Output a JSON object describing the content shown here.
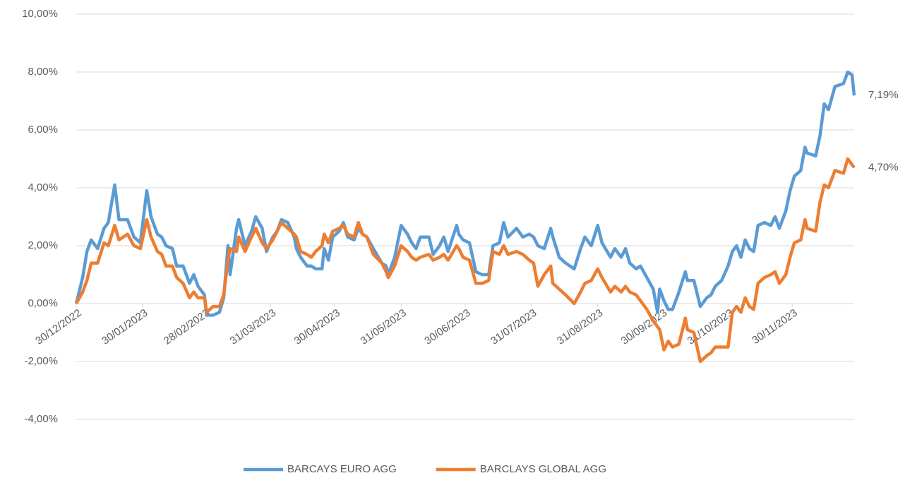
{
  "chart_data": {
    "type": "line",
    "x": [
      "30/12/2022",
      "02/01/2023",
      "04/01/2023",
      "06/01/2023",
      "09/01/2023",
      "12/01/2023",
      "14/01/2023",
      "17/01/2023",
      "19/01/2023",
      "23/01/2023",
      "26/01/2023",
      "29/01/2023",
      "01/02/2023",
      "03/02/2023",
      "06/02/2023",
      "08/02/2023",
      "10/02/2023",
      "13/02/2023",
      "15/02/2023",
      "18/02/2023",
      "21/02/2023",
      "23/02/2023",
      "25/02/2023",
      "28/02/2023",
      "01/03/2023",
      "04/03/2023",
      "07/03/2023",
      "09/03/2023",
      "11/03/2023",
      "12/03/2023",
      "15/03/2023",
      "16/03/2023",
      "19/03/2023",
      "22/03/2023",
      "24/03/2023",
      "27/03/2023",
      "29/03/2023",
      "01/04/2023",
      "03/04/2023",
      "05/04/2023",
      "08/04/2023",
      "11/04/2023",
      "12/04/2023",
      "14/04/2023",
      "17/04/2023",
      "19/04/2023",
      "21/04/2023",
      "24/04/2023",
      "25/04/2023",
      "27/04/2023",
      "29/04/2023",
      "02/05/2023",
      "04/05/2023",
      "06/05/2023",
      "09/05/2023",
      "11/05/2023",
      "13/05/2023",
      "15/05/2023",
      "18/05/2023",
      "22/05/2023",
      "24/05/2023",
      "25/05/2023",
      "28/05/2023",
      "31/05/2023",
      "03/06/2023",
      "05/06/2023",
      "07/06/2023",
      "09/06/2023",
      "13/06/2023",
      "15/06/2023",
      "18/06/2023",
      "20/06/2023",
      "22/06/2023",
      "26/06/2023",
      "27/06/2023",
      "29/06/2023",
      "02/07/2023",
      "05/07/2023",
      "08/07/2023",
      "11/07/2023",
      "13/07/2023",
      "16/07/2023",
      "18/07/2023",
      "20/07/2023",
      "24/07/2023",
      "27/07/2023",
      "30/07/2023",
      "01/08/2023",
      "03/08/2023",
      "06/08/2023",
      "09/08/2023",
      "10/08/2023",
      "13/08/2023",
      "16/08/2023",
      "20/08/2023",
      "23/08/2023",
      "25/08/2023",
      "28/08/2023",
      "31/08/2023",
      "02/09/2023",
      "06/09/2023",
      "08/09/2023",
      "11/09/2023",
      "13/09/2023",
      "15/09/2023",
      "18/09/2023",
      "20/09/2023",
      "23/09/2023",
      "26/09/2023",
      "28/09/2023",
      "29/09/2023",
      "01/10/2023",
      "03/10/2023",
      "05/10/2023",
      "08/10/2023",
      "11/10/2023",
      "12/10/2023",
      "15/10/2023",
      "18/10/2023",
      "21/10/2023",
      "23/10/2023",
      "25/10/2023",
      "28/10/2023",
      "31/10/2023",
      "02/11/2023",
      "04/11/2023",
      "06/11/2023",
      "08/11/2023",
      "10/11/2023",
      "12/11/2023",
      "14/11/2023",
      "17/11/2023",
      "20/11/2023",
      "22/11/2023",
      "24/11/2023",
      "27/11/2023",
      "29/11/2023",
      "01/12/2023",
      "04/12/2023",
      "06/12/2023",
      "07/12/2023",
      "11/12/2023",
      "13/12/2023",
      "15/12/2023",
      "17/12/2023",
      "20/12/2023",
      "24/12/2023",
      "26/12/2023",
      "28/12/2023",
      "29/12/2023"
    ],
    "series": [
      {
        "name": "BARCAYS EURO AGG",
        "color": "#5b9bd5",
        "values": [
          0,
          0.9,
          1.8,
          2.2,
          1.9,
          2.6,
          2.8,
          4.1,
          2.9,
          2.9,
          2.3,
          2.1,
          3.9,
          3.0,
          2.4,
          2.3,
          2.0,
          1.9,
          1.3,
          1.3,
          0.7,
          1.0,
          0.6,
          0.3,
          -0.4,
          -0.4,
          -0.3,
          0.2,
          2.0,
          1.0,
          2.6,
          2.9,
          2.0,
          2.5,
          3.0,
          2.6,
          1.8,
          2.3,
          2.5,
          2.9,
          2.8,
          2.3,
          1.9,
          1.6,
          1.3,
          1.3,
          1.2,
          1.2,
          1.9,
          1.5,
          2.3,
          2.5,
          2.8,
          2.3,
          2.2,
          2.6,
          2.4,
          2.3,
          1.9,
          1.4,
          1.3,
          1.0,
          1.6,
          2.7,
          2.4,
          2.1,
          1.9,
          2.3,
          2.3,
          1.7,
          2.0,
          2.3,
          1.8,
          2.7,
          2.4,
          2.2,
          2.1,
          1.1,
          1.0,
          1.0,
          2.0,
          2.1,
          2.8,
          2.3,
          2.6,
          2.3,
          2.4,
          2.3,
          2.0,
          1.9,
          2.6,
          2.3,
          1.6,
          1.4,
          1.2,
          1.9,
          2.3,
          2.0,
          2.7,
          2.1,
          1.6,
          1.9,
          1.6,
          1.9,
          1.4,
          1.2,
          1.3,
          0.9,
          0.5,
          -0.3,
          0.5,
          0.1,
          -0.2,
          -0.2,
          0.4,
          1.1,
          0.8,
          0.8,
          -0.1,
          0.2,
          0.3,
          0.6,
          0.8,
          1.3,
          1.8,
          2.0,
          1.6,
          2.2,
          1.9,
          1.8,
          2.7,
          2.8,
          2.7,
          3.0,
          2.6,
          3.2,
          3.9,
          4.4,
          4.6,
          5.4,
          5.2,
          5.1,
          5.8,
          6.9,
          6.7,
          7.5,
          7.6,
          8.0,
          7.9,
          7.19
        ],
        "value_labels": [
          null,
          null,
          null,
          null,
          null,
          null,
          null,
          null,
          null,
          null,
          null,
          null,
          null,
          null,
          null,
          null,
          null,
          null,
          null,
          null,
          null,
          null,
          null,
          null,
          null,
          null,
          null,
          null,
          null,
          null,
          null,
          null,
          null,
          null,
          null,
          null,
          null,
          null,
          null,
          null,
          null,
          null,
          null,
          null,
          null,
          null,
          null,
          null,
          null,
          null,
          null,
          null,
          null,
          null,
          null,
          null,
          null,
          null,
          null,
          null,
          null,
          null,
          null,
          null,
          null,
          null,
          null,
          null,
          null,
          null,
          null,
          null,
          null,
          null,
          null,
          null,
          null,
          null,
          null,
          null,
          null,
          null,
          null,
          null,
          null,
          null,
          null,
          null,
          null,
          null,
          null,
          null,
          null,
          null,
          null,
          null,
          null,
          null,
          null,
          null,
          null,
          null,
          null,
          null,
          null,
          null,
          null,
          null,
          null,
          null,
          null,
          null,
          null,
          null,
          null,
          null,
          null,
          null,
          null,
          null,
          null,
          null,
          null,
          null,
          null,
          null,
          null,
          null,
          null,
          null,
          null,
          null,
          null,
          null,
          null,
          null,
          null,
          null,
          null,
          null,
          null,
          null,
          null,
          null,
          null,
          null,
          null,
          null,
          null,
          "7,19%"
        ]
      },
      {
        "name": "BARCLAYS GLOBAL AGG",
        "color": "#ed7d31",
        "values": [
          0,
          0.4,
          0.8,
          1.4,
          1.4,
          2.1,
          2.0,
          2.7,
          2.2,
          2.4,
          2.0,
          1.9,
          2.9,
          2.3,
          1.8,
          1.7,
          1.3,
          1.3,
          0.9,
          0.7,
          0.2,
          0.4,
          0.2,
          0.2,
          -0.3,
          -0.1,
          -0.1,
          0.3,
          1.5,
          1.9,
          1.8,
          2.3,
          1.8,
          2.3,
          2.6,
          2.1,
          1.9,
          2.2,
          2.5,
          2.8,
          2.6,
          2.4,
          2.3,
          1.8,
          1.7,
          1.6,
          1.8,
          2.0,
          2.4,
          2.1,
          2.5,
          2.6,
          2.7,
          2.4,
          2.3,
          2.8,
          2.4,
          2.3,
          1.7,
          1.4,
          1.1,
          0.9,
          1.3,
          2.0,
          1.8,
          1.6,
          1.5,
          1.6,
          1.7,
          1.5,
          1.6,
          1.7,
          1.5,
          2.0,
          1.9,
          1.6,
          1.5,
          0.7,
          0.7,
          0.8,
          1.8,
          1.7,
          2.0,
          1.7,
          1.8,
          1.7,
          1.5,
          1.4,
          0.6,
          1.0,
          1.3,
          0.7,
          0.5,
          0.3,
          0.0,
          0.4,
          0.7,
          0.8,
          1.2,
          0.9,
          0.4,
          0.6,
          0.4,
          0.6,
          0.4,
          0.3,
          0.1,
          -0.2,
          -0.6,
          -0.8,
          -0.9,
          -1.6,
          -1.3,
          -1.5,
          -1.4,
          -0.5,
          -0.9,
          -1.0,
          -2.0,
          -1.8,
          -1.7,
          -1.5,
          -1.5,
          -1.5,
          -0.3,
          -0.1,
          -0.3,
          0.2,
          -0.1,
          -0.2,
          0.7,
          0.9,
          1.0,
          1.1,
          0.7,
          1.0,
          1.6,
          2.1,
          2.2,
          2.9,
          2.6,
          2.5,
          3.5,
          4.1,
          4.0,
          4.6,
          4.5,
          5.0,
          4.8,
          4.7
        ],
        "value_labels": [
          null,
          null,
          null,
          null,
          null,
          null,
          null,
          null,
          null,
          null,
          null,
          null,
          null,
          null,
          null,
          null,
          null,
          null,
          null,
          null,
          null,
          null,
          null,
          null,
          null,
          null,
          null,
          null,
          null,
          null,
          null,
          null,
          null,
          null,
          null,
          null,
          null,
          null,
          null,
          null,
          null,
          null,
          null,
          null,
          null,
          null,
          null,
          null,
          null,
          null,
          null,
          null,
          null,
          null,
          null,
          null,
          null,
          null,
          null,
          null,
          null,
          null,
          null,
          null,
          null,
          null,
          null,
          null,
          null,
          null,
          null,
          null,
          null,
          null,
          null,
          null,
          null,
          null,
          null,
          null,
          null,
          null,
          null,
          null,
          null,
          null,
          null,
          null,
          null,
          null,
          null,
          null,
          null,
          null,
          null,
          null,
          null,
          null,
          null,
          null,
          null,
          null,
          null,
          null,
          null,
          null,
          null,
          null,
          null,
          null,
          null,
          null,
          null,
          null,
          null,
          null,
          null,
          null,
          null,
          null,
          null,
          null,
          null,
          null,
          null,
          null,
          null,
          null,
          null,
          null,
          null,
          null,
          null,
          null,
          null,
          null,
          null,
          null,
          null,
          null,
          null,
          null,
          null,
          null,
          null,
          null,
          null,
          null,
          null,
          "4,70%"
        ]
      }
    ],
    "xlim": [
      "30/12/2022",
      "29/12/2023"
    ],
    "xticks": [
      "30/12/2022",
      "30/01/2023",
      "28/02/2023",
      "31/03/2023",
      "30/04/2023",
      "31/05/2023",
      "30/06/2023",
      "31/07/2023",
      "31/08/2023",
      "30/09/2023",
      "31/10/2023",
      "30/11/2023"
    ],
    "ylim": [
      -4,
      10
    ],
    "yticks": [
      {
        "value": -4,
        "label": "-4,00%"
      },
      {
        "value": -2,
        "label": "-2,00%"
      },
      {
        "value": 0,
        "label": "0,00%"
      },
      {
        "value": 2,
        "label": "2,00%"
      },
      {
        "value": 4,
        "label": "4,00%"
      },
      {
        "value": 6,
        "label": "6,00%"
      },
      {
        "value": 8,
        "label": "8,00%"
      },
      {
        "value": 10,
        "label": "10,00%"
      }
    ],
    "grid": true,
    "legend": "bottom"
  }
}
